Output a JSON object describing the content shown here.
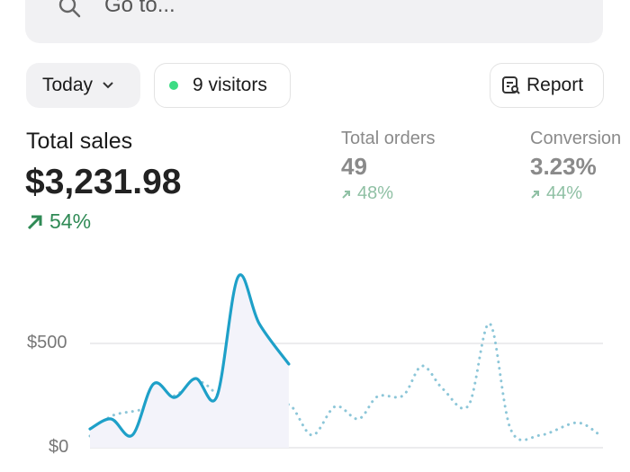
{
  "search": {
    "placeholder": "Go to...",
    "icon": "search-icon"
  },
  "filters": {
    "period_label": "Today",
    "visitors_label": "9 visitors",
    "report_label": "Report",
    "live_color": "#3ddc84"
  },
  "metrics": {
    "total_sales": {
      "label": "Total sales",
      "value": "$3,231.98",
      "change": "54%",
      "trend": "up"
    },
    "total_orders": {
      "label": "Total orders",
      "value": "49",
      "change": "48%",
      "trend": "up"
    },
    "conversion": {
      "label": "Conversion",
      "value": "3.23%",
      "change": "44%",
      "trend": "up"
    }
  },
  "chart_data": {
    "type": "line",
    "yticks": [
      "$0",
      "$500"
    ],
    "ylim": [
      0,
      800
    ],
    "grid": true,
    "series": [
      {
        "style": "solid",
        "color": "#1ea0c8",
        "x": [
          0,
          1,
          2,
          3,
          4,
          5,
          6,
          7,
          8,
          9.4
        ],
        "values": [
          90,
          138,
          60,
          306,
          241,
          332,
          246,
          819,
          595,
          401
        ]
      },
      {
        "style": "dotted",
        "color": "#8cc6d8",
        "x": [
          0,
          1,
          2.5,
          4,
          5.2,
          6.3,
          7.3,
          8.3,
          9.4,
          10.5,
          11.6,
          12.7,
          13.6,
          14.8,
          15.7,
          16.7,
          17.9,
          18.9,
          19.9,
          21.3,
          23,
          24
        ],
        "values": [
          56,
          151,
          185,
          250,
          315,
          250,
          392,
          129,
          207,
          60,
          198,
          138,
          246,
          250,
          392,
          280,
          203,
          595,
          86,
          60,
          120,
          69
        ]
      }
    ]
  }
}
